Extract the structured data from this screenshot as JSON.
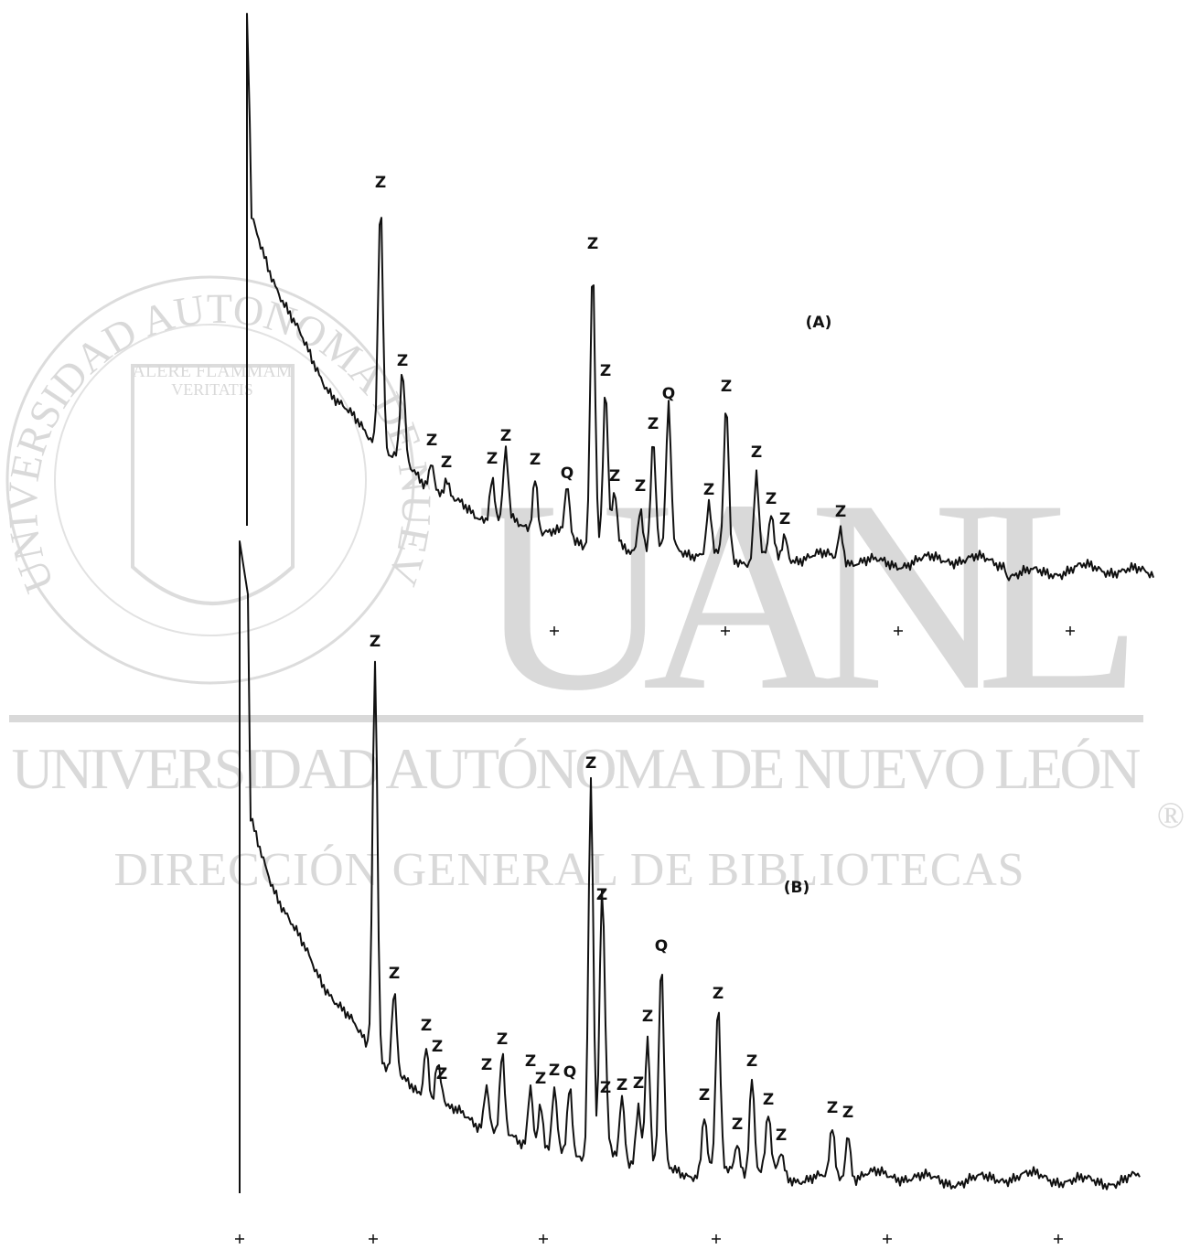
{
  "watermark": {
    "ring_text": "UNIVERSIDAD AUTONOMA DE NUEVO LEON",
    "motto": [
      "ALERE FLAMMAM",
      "VERITATIS"
    ],
    "logo": "UANL",
    "name": "UNIVERSIDAD AUTÓNOMA DE NUEVO LEÓN",
    "registered": "®",
    "department": "DIRECCIÓN GENERAL DE BIBLIOTECAS"
  },
  "figure": {
    "panels": [
      {
        "label": "(A)",
        "peaks": [
          "Z",
          "Z",
          "Z",
          "Z",
          "Z",
          "Z",
          "Z",
          "Q",
          "Z",
          "Z",
          "Q",
          "Z",
          "Z",
          "Z",
          "Z",
          "Z",
          "Z",
          "Z",
          "Z",
          "Z"
        ]
      },
      {
        "label": "(B)",
        "peaks": [
          "Z",
          "Z",
          "Z",
          "Z",
          "Z",
          "Z",
          "Z",
          "Z",
          "Z",
          "Z",
          "Q",
          "Z",
          "Z",
          "Q",
          "Z",
          "Z",
          "Z",
          "Z",
          "Z",
          "Z",
          "Z",
          "Z",
          "Z",
          "Z",
          "Z",
          "Z"
        ]
      }
    ]
  }
}
